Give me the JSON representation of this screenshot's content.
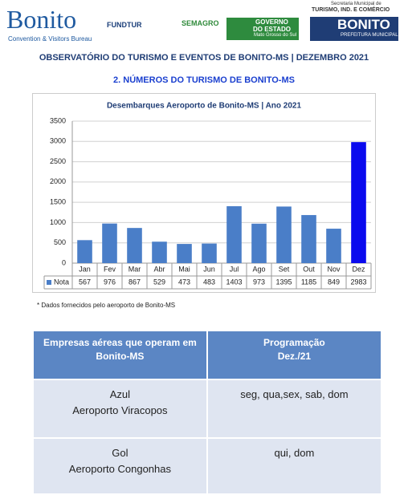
{
  "header": {
    "logo_name": "Bonito",
    "logo_sub": "Convention & Visitors Bureau",
    "fundtur": "FUNDTUR",
    "semagro": "SEMAGRO",
    "governo": "GOVERNO",
    "governo_2": "DO ESTADO",
    "governo_sub": "Mato Grosso do Sul",
    "secretaria": "Secretaria Municipal de",
    "secretaria_dept": "TURISMO, IND. E COMÉRCIO",
    "prefeitura": "BONITO",
    "prefeitura_sub": "PREFEITURA MUNICIPAL"
  },
  "title": "OBSERVATÓRIO DO TURISMO E EVENTOS DE BONITO-MS | DEZEMBRO 2021",
  "section": "2. NÚMEROS DO TURISMO DE BONITO-MS",
  "chart_data": {
    "type": "bar",
    "title": "Desembarques  Aeroporto de Bonito-MS | Ano 2021",
    "categories": [
      "Jan",
      "Fev",
      "Mar",
      "Abr",
      "Mai",
      "Jun",
      "Jul",
      "Ago",
      "Set",
      "Out",
      "Nov",
      "Dez"
    ],
    "series": [
      {
        "name": "Nota",
        "color": "#4a7ec8",
        "values": [
          567,
          976,
          867,
          529,
          473,
          483,
          1403,
          973,
          1395,
          1185,
          849,
          2983
        ],
        "colors": [
          "#4a7ec8",
          "#4a7ec8",
          "#4a7ec8",
          "#4a7ec8",
          "#4a7ec8",
          "#4a7ec8",
          "#4a7ec8",
          "#4a7ec8",
          "#4a7ec8",
          "#4a7ec8",
          "#4a7ec8",
          "#0a0aee"
        ]
      }
    ],
    "ylim": [
      0,
      3500
    ],
    "yticks": [
      0,
      500,
      1000,
      1500,
      2000,
      2500,
      3000,
      3500
    ],
    "grid": true,
    "data_table": true
  },
  "footnote": "* Dados fornecidos pelo aeroporto de Bonito-MS",
  "table": {
    "header": [
      [
        "Empresas aéreas que operam em",
        "Bonito-MS"
      ],
      [
        "Programação",
        "Dez./21"
      ]
    ],
    "rows": [
      [
        [
          "Azul",
          "Aeroporto  Viracopos"
        ],
        [
          "seg, qua,sex, sab, dom"
        ]
      ],
      [
        [
          "Gol",
          "Aeroporto Congonhas"
        ],
        [
          "qui, dom"
        ]
      ]
    ]
  }
}
